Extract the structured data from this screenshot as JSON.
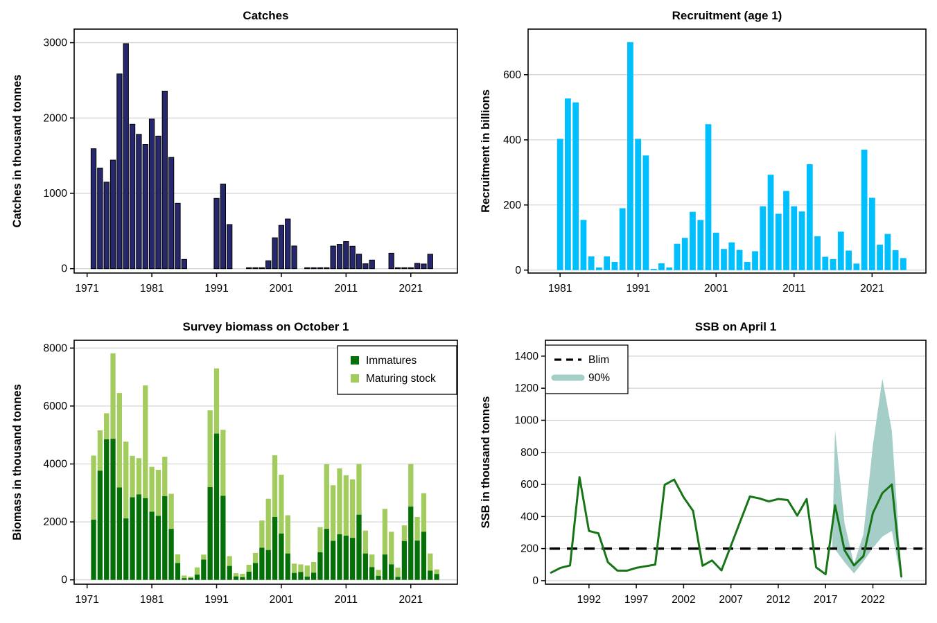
{
  "figure": {
    "background": "#ffffff",
    "gridline_color": "#d5d5d5",
    "frame_color": "#000000"
  },
  "chart_data": [
    {
      "id": "catches",
      "type": "bar",
      "title": "Catches",
      "ylabel": "Catches in thousand tonnes",
      "bar_color": "#27276e",
      "bar_border": "#000000",
      "years_start": 1972,
      "values": [
        1592,
        1336,
        1149,
        1441,
        2585,
        2987,
        1917,
        1783,
        1648,
        1986,
        1760,
        2357,
        1477,
        868,
        123,
        0,
        0,
        0,
        0,
        933,
        1123,
        586,
        0,
        0,
        1,
        1,
        2,
        105,
        410,
        575,
        659,
        301,
        0,
        1,
        2,
        4,
        12,
        300,
        323,
        360,
        298,
        193,
        65,
        114,
        0,
        0,
        205,
        1,
        1,
        1,
        70,
        62,
        192
      ],
      "xticks": [
        1971,
        1981,
        1991,
        2001,
        2011,
        2021
      ],
      "yticks": [
        0,
        1000,
        2000,
        3000
      ],
      "xlim": [
        1969.0,
        2028.2
      ],
      "ylim": [
        -58,
        3180
      ],
      "grid": true,
      "legend": null
    },
    {
      "id": "recruitment",
      "type": "bar",
      "title": "Recruitment (age 1)",
      "ylabel": "Recruitment in billions",
      "bar_color": "#00bfff",
      "bar_border": null,
      "years_start": 1981,
      "values": [
        403,
        527,
        515,
        154,
        42,
        8,
        42,
        25,
        190,
        700,
        403,
        352,
        4,
        21,
        8,
        81,
        99,
        179,
        154,
        448,
        115,
        65,
        85,
        62,
        25,
        58,
        196,
        293,
        173,
        243,
        196,
        180,
        325,
        104,
        41,
        34,
        118,
        60,
        20,
        370,
        222,
        78,
        111,
        61,
        37
      ],
      "xticks": [
        1981,
        1991,
        2001,
        2011,
        2021
      ],
      "yticks": [
        0,
        200,
        400,
        600
      ],
      "xlim": [
        1976.9,
        2027.9
      ],
      "ylim": [
        -9,
        740
      ],
      "grid": true,
      "legend": null
    },
    {
      "id": "survey",
      "type": "stacked-bar",
      "title": "Survey biomass on October 1",
      "ylabel": "Biomass in thousand tonnes",
      "years_start": 1972,
      "series": [
        {
          "name": "Immatures",
          "color": "#067008",
          "values": [
            2080,
            3770,
            4850,
            4870,
            3190,
            2120,
            2850,
            2950,
            2820,
            2350,
            2210,
            2890,
            1760,
            580,
            60,
            70,
            180,
            700,
            3200,
            5050,
            2900,
            480,
            120,
            90,
            280,
            580,
            1110,
            1030,
            2170,
            1600,
            910,
            240,
            270,
            110,
            245,
            950,
            1760,
            1345,
            1575,
            1525,
            1450,
            2250,
            910,
            440,
            140,
            875,
            535,
            100,
            1340,
            2530,
            1355,
            1660,
            320,
            200
          ]
        },
        {
          "name": "Maturing stock",
          "color": "#a2cc5e",
          "values": [
            2210,
            1390,
            900,
            2950,
            3260,
            2650,
            1430,
            1250,
            3890,
            1550,
            1590,
            1360,
            1210,
            300,
            90,
            40,
            250,
            170,
            2650,
            2250,
            2280,
            340,
            110,
            120,
            240,
            350,
            940,
            1770,
            2130,
            2030,
            1320,
            320,
            265,
            385,
            370,
            870,
            2230,
            1920,
            2275,
            2085,
            2020,
            1750,
            790,
            435,
            205,
            1575,
            1125,
            320,
            540,
            1470,
            815,
            1330,
            590,
            160
          ]
        }
      ],
      "xticks": [
        1971,
        1981,
        1991,
        2001,
        2011,
        2021
      ],
      "yticks": [
        0,
        2000,
        4000,
        6000,
        8000
      ],
      "xlim": [
        1969.0,
        2028.2
      ],
      "ylim": [
        -150,
        8270
      ],
      "grid": true,
      "legend": {
        "position": "top-right",
        "items": [
          {
            "label": "Immatures",
            "swatch": "square",
            "color": "#067008"
          },
          {
            "label": "Maturing stock",
            "swatch": "square",
            "color": "#a2cc5e"
          }
        ]
      }
    },
    {
      "id": "ssb",
      "type": "line-with-band",
      "title": "SSB on April 1",
      "ylabel": "SSB in thousand tonnes",
      "line_color": "#177517",
      "band_color": "#a5cec8",
      "blim_color": "#000000",
      "blim_value": 200,
      "years_start": 1988,
      "values": [
        50,
        80,
        95,
        645,
        310,
        295,
        115,
        63,
        62,
        80,
        90,
        100,
        598,
        630,
        520,
        435,
        93,
        126,
        64,
        218,
        372,
        525,
        513,
        494,
        509,
        503,
        406,
        509,
        83,
        40,
        470,
        190,
        95,
        153,
        422,
        546,
        600,
        26
      ],
      "band": {
        "years": [
          2017.7,
          2018,
          2019,
          2020,
          2021,
          2022,
          2023,
          2024,
          2025
        ],
        "upper": [
          210,
          940,
          360,
          105,
          290,
          845,
          1260,
          935,
          45
        ],
        "lower": [
          210,
          195,
          115,
          45,
          120,
          205,
          275,
          310,
          0
        ]
      },
      "xticks": [
        1992,
        1997,
        2002,
        2007,
        2012,
        2017,
        2022
      ],
      "yticks": [
        0,
        200,
        400,
        600,
        800,
        1000,
        1200,
        1400
      ],
      "xlim": [
        1987.4,
        2027.6
      ],
      "ylim": [
        -22,
        1499
      ],
      "grid": true,
      "legend": {
        "position": "top-left",
        "items": [
          {
            "label": "Blim",
            "swatch": "dash",
            "color": "#000000"
          },
          {
            "label": "90%",
            "swatch": "band",
            "color": "#a5cec8"
          }
        ]
      }
    }
  ]
}
